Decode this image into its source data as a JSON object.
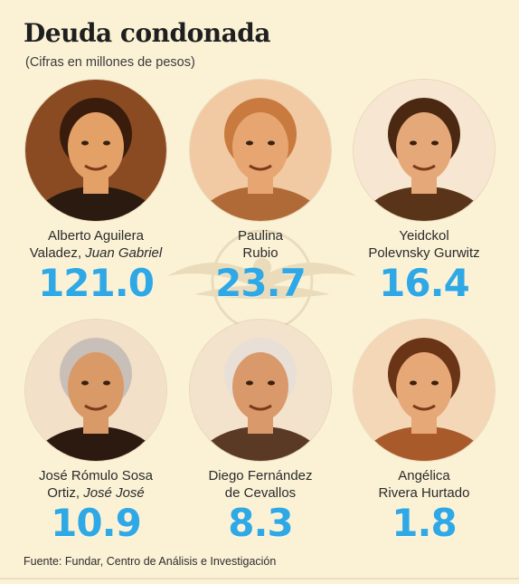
{
  "header": {
    "title": "Deuda condonada",
    "subtitle": "(Cifras en millones de pesos)"
  },
  "source": "Fuente: Fundar, Centro de Análisis e Investigación",
  "colors": {
    "value": "#2fa8e6",
    "background": "#fbf2d6",
    "portrait_tone": "#c9743a"
  },
  "chart_data": {
    "type": "table",
    "title": "Deuda condonada",
    "subtitle": "(Cifras en millones de pesos)",
    "categories": [
      "Alberto Aguilera Valadez, Juan Gabriel",
      "Paulina Rubio",
      "Yeidckol Polevnsky Gurwitz",
      "José Rómulo Sosa Ortiz, José José",
      "Diego Fernández de Cevallos",
      "Angélica Rivera Hurtado"
    ],
    "values": [
      121.0,
      23.7,
      16.4,
      10.9,
      8.3,
      1.8
    ],
    "entries": [
      {
        "line1": "Alberto Aguilera",
        "line2": "Valadez, ",
        "alias": "Juan Gabriel",
        "value_label": "121.0"
      },
      {
        "line1": "Paulina",
        "line2": "Rubio",
        "alias": "",
        "value_label": "23.7"
      },
      {
        "line1": "Yeidckol",
        "line2": "Polevnsky Gurwitz",
        "alias": "",
        "value_label": "16.4"
      },
      {
        "line1": "José Rómulo Sosa",
        "line2": "Ortiz, ",
        "alias": "José José",
        "value_label": "10.9"
      },
      {
        "line1": "Diego Fernández",
        "line2": "de Cevallos",
        "alias": "",
        "value_label": "8.3"
      },
      {
        "line1": "Angélica",
        "line2": "Rivera Hurtado",
        "alias": "",
        "value_label": "1.8"
      }
    ]
  }
}
